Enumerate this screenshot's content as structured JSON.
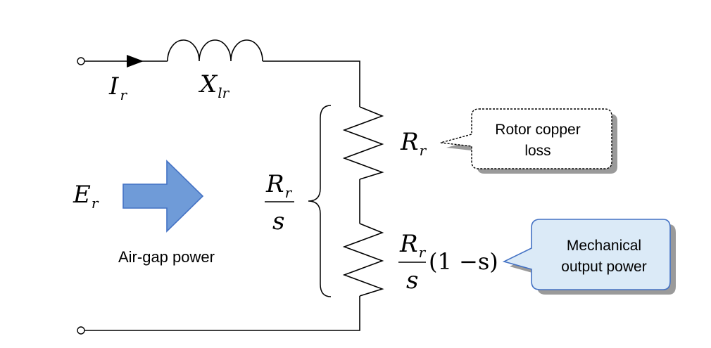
{
  "labels": {
    "current_symbol": "I",
    "current_sub": "r",
    "reactance_symbol": "X",
    "reactance_sub": "lr",
    "emf_symbol": "E",
    "emf_sub": "r",
    "air_gap_label": "Air-gap power",
    "total_res_num": "R",
    "total_res_num_sub": "r",
    "total_res_den": "s",
    "copper_res_symbol": "R",
    "copper_res_sub": "r",
    "mech_res_num": "R",
    "mech_res_num_sub": "r",
    "mech_res_den": "s",
    "mech_factor": "(1 −s)"
  },
  "callouts": {
    "copper_loss": {
      "line1": "Rotor copper",
      "line2": "loss"
    },
    "mechanical": {
      "line1": "Mechanical",
      "line2": "output power"
    }
  },
  "colors": {
    "wire": "#000000",
    "arrow_fill": "#6f9bd8",
    "arrow_stroke": "#4472c4",
    "callout_blue_fill": "#dbeaf7",
    "callout_blue_stroke": "#4472c4",
    "shadow": "#9a9a9a"
  }
}
